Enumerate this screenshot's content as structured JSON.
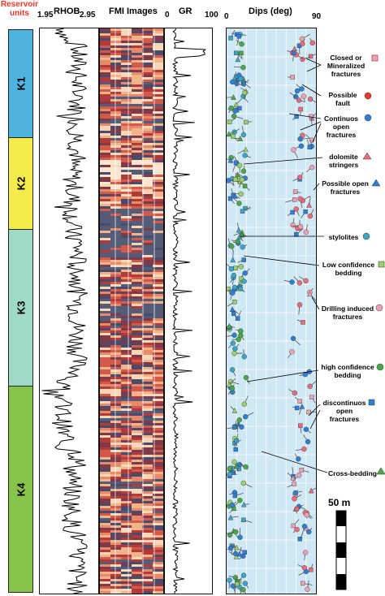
{
  "headers": {
    "reservoir_line1": "Reservoir",
    "reservoir_line2": "units",
    "rhob": "RHOB",
    "rhob_min": "1.95",
    "rhob_max": "2.95",
    "fmi": "FMI Images",
    "gr": "GR",
    "gr_min": "0",
    "gr_max": "100",
    "dips": "Dips (deg)",
    "dips_min": "0",
    "dips_max": "90"
  },
  "units": [
    {
      "label": "K1",
      "color": "#4fb3e0"
    },
    {
      "label": "K2",
      "color": "#f3ec4a"
    },
    {
      "label": "K3",
      "color": "#9fdbc4"
    },
    {
      "label": "K4",
      "color": "#86c54c"
    }
  ],
  "legend": [
    {
      "line1": "Closed or",
      "line2": "Mineralized",
      "line3": "fractures",
      "symbol": "square",
      "color": "#f2a0b8"
    },
    {
      "line1": "Possible",
      "line2": "fault",
      "line3": "",
      "symbol": "circle",
      "color": "#e8392b"
    },
    {
      "line1": "Continuos",
      "line2": "open",
      "line3": "fractures",
      "symbol": "circle",
      "color": "#2f7fd6"
    },
    {
      "line1": "dolomite",
      "line2": "stringers",
      "line3": "",
      "symbol": "triangle",
      "color": "#ee6a7d"
    },
    {
      "line1": "Possible open",
      "line2": "fractures",
      "line3": "",
      "symbol": "triangle",
      "color": "#2f7fd6"
    },
    {
      "line1": "stylolites",
      "line2": "",
      "line3": "",
      "symbol": "circle",
      "color": "#3aa5c9"
    },
    {
      "line1": "Low confidence",
      "line2": "bedding",
      "line3": "",
      "symbol": "square",
      "color": "#9bd06a"
    },
    {
      "line1": "Drilling induced",
      "line2": "fractures",
      "line3": "",
      "symbol": "circle",
      "color": "#f2a0b8"
    },
    {
      "line1": "high confidence",
      "line2": "bedding",
      "line3": "",
      "symbol": "circle",
      "color": "#4aa84a"
    },
    {
      "line1": "discontinuos",
      "line2": "open",
      "line3": "fractures",
      "symbol": "square",
      "color": "#2f7fd6"
    },
    {
      "line1": "Cross-bedding",
      "line2": "",
      "line3": "",
      "symbol": "triangle",
      "color": "#4aa84a"
    }
  ],
  "scale_bar": {
    "label": "50 m"
  },
  "colors": {
    "title_red": "#e8392b",
    "dip_track_bg": "#cfe8f3"
  }
}
